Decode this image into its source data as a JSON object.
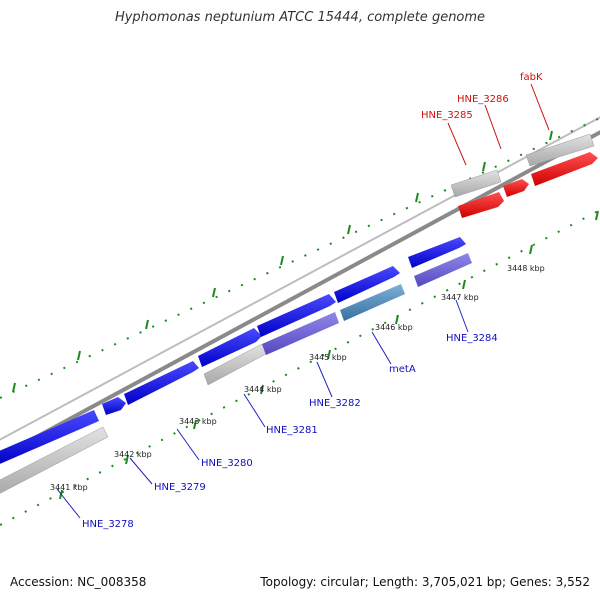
{
  "title": "Hyphomonas neptunium ATCC 15444, complete genome",
  "footer": {
    "accession": "Accession: NC_008358",
    "summary": "Topology: circular; Length: 3,705,021 bp; Genes: 3,552"
  },
  "axis_ticks": [
    "3441 kbp",
    "3442 kbp",
    "3443 kbp",
    "3444 kbp",
    "3445 kbp",
    "3446 kbp",
    "3447 kbp",
    "3448 kbp"
  ],
  "gene_labels": [
    {
      "text": "HNE_3278",
      "color": "#1010c0"
    },
    {
      "text": "HNE_3279",
      "color": "#1010c0"
    },
    {
      "text": "HNE_3280",
      "color": "#1010c0"
    },
    {
      "text": "HNE_3281",
      "color": "#1010c0"
    },
    {
      "text": "HNE_3282",
      "color": "#1010c0"
    },
    {
      "text": "metA",
      "color": "#1010c0"
    },
    {
      "text": "HNE_3284",
      "color": "#1010c0"
    },
    {
      "text": "HNE_3285",
      "color": "#d01010"
    },
    {
      "text": "HNE_3286",
      "color": "#d01010"
    },
    {
      "text": "fabK",
      "color": "#d01010"
    }
  ],
  "colors": {
    "blue_cds": "#1a1aee",
    "purple_cds": "#6a5fd0",
    "steel_cds": "#4a86b8",
    "red_cds": "#ee1111",
    "gray_gene": "#c4c4c4",
    "backbone": "#888888",
    "tick_green": "#1e8a1e"
  }
}
